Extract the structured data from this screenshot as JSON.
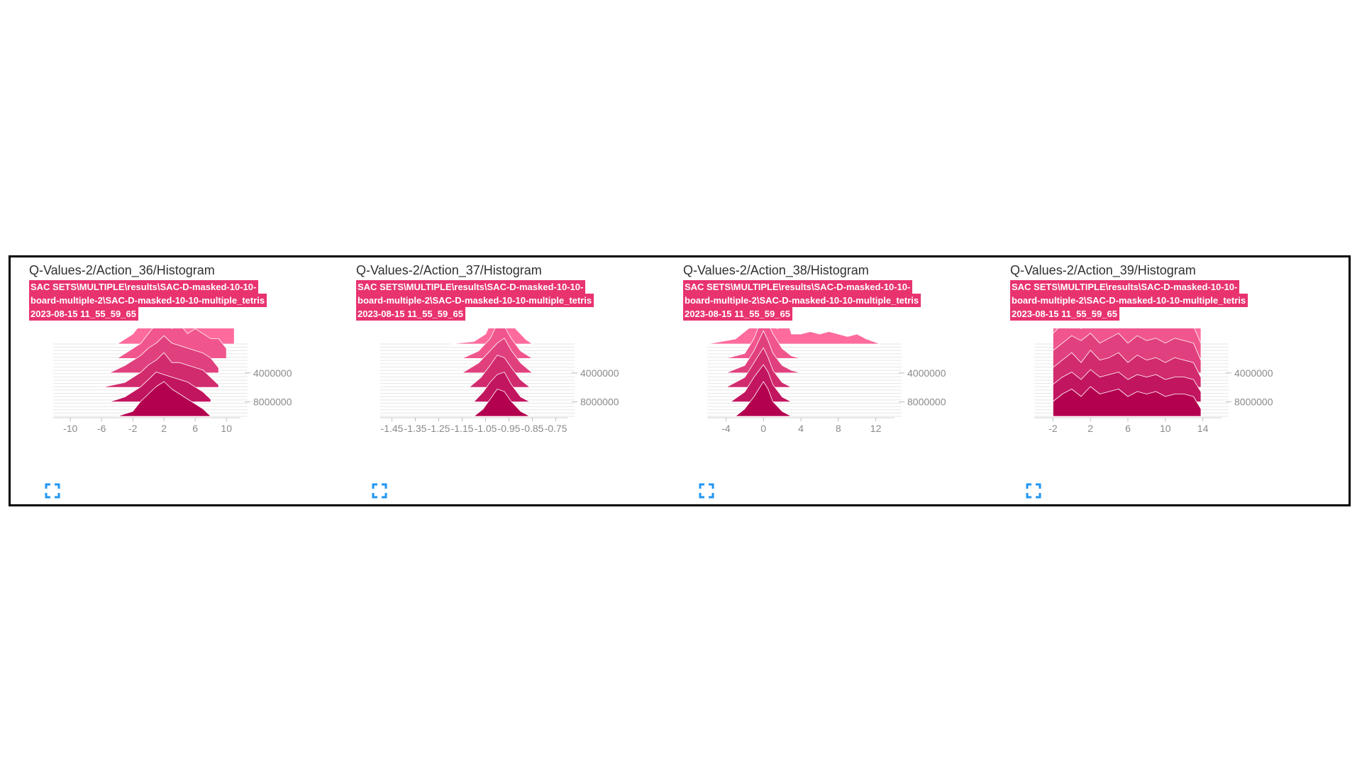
{
  "colors": {
    "accent": "#e8336f",
    "series": "#ff6b9d",
    "series_dark": "#b3004f",
    "icon": "#2196f3"
  },
  "cards": [
    {
      "title": "Q-Values-2/Action_36/Histogram",
      "run_lines": [
        "SAC SETS\\MULTIPLE\\results\\SAC-D-masked-10-10-",
        "board-multiple-2\\SAC-D-masked-10-10-multiple_tetris",
        "2023-08-15 11_55_59_65"
      ],
      "expand_icon": "fullscreen-icon"
    },
    {
      "title": "Q-Values-2/Action_37/Histogram",
      "run_lines": [
        "SAC SETS\\MULTIPLE\\results\\SAC-D-masked-10-10-",
        "board-multiple-2\\SAC-D-masked-10-10-multiple_tetris",
        "2023-08-15 11_55_59_65"
      ],
      "expand_icon": "fullscreen-icon"
    },
    {
      "title": "Q-Values-2/Action_38/Histogram",
      "run_lines": [
        "SAC SETS\\MULTIPLE\\results\\SAC-D-masked-10-10-",
        "board-multiple-2\\SAC-D-masked-10-10-multiple_tetris",
        "2023-08-15 11_55_59_65"
      ],
      "expand_icon": "fullscreen-icon"
    },
    {
      "title": "Q-Values-2/Action_39/Histogram",
      "run_lines": [
        "SAC SETS\\MULTIPLE\\results\\SAC-D-masked-10-10-",
        "board-multiple-2\\SAC-D-masked-10-10-multiple_tetris",
        "2023-08-15 11_55_59_65"
      ],
      "expand_icon": "fullscreen-icon"
    }
  ],
  "chart_data": [
    {
      "type": "area",
      "chart_kind": "ridgeline-histogram",
      "title": "Q-Values-2/Action_36/Histogram",
      "x_ticks": [
        -10,
        -6,
        -2,
        2,
        6,
        10
      ],
      "xlim": [
        -12.2,
        11.8
      ],
      "y_ticks": [
        4000000,
        8000000
      ],
      "steps": [
        0,
        2000000,
        4000000,
        6000000,
        8000000,
        10000000
      ],
      "series": [
        {
          "step": 0,
          "x": [
            -4,
            -2,
            -1,
            0,
            0.5,
            1,
            1.5,
            2,
            2.5,
            3,
            4,
            5,
            6,
            7,
            8,
            9,
            10,
            11
          ],
          "y": [
            0,
            0.2,
            0.4,
            0.5,
            0.9,
            0.6,
            1.0,
            0.7,
            0.8,
            0.6,
            0.7,
            0.6,
            0.65,
            0.55,
            0.6,
            0.5,
            0.45,
            0.6
          ]
        },
        {
          "step": 2000000,
          "x": [
            -4,
            -2,
            -1,
            0,
            1,
            2,
            3,
            4,
            5,
            6,
            7,
            8,
            9,
            10
          ],
          "y": [
            0,
            0.2,
            0.3,
            0.5,
            0.7,
            0.8,
            0.6,
            0.7,
            0.5,
            0.6,
            0.5,
            0.4,
            0.4,
            0.2
          ]
        },
        {
          "step": 4000000,
          "x": [
            -5,
            -3,
            -1,
            0,
            1,
            2,
            3,
            4,
            5,
            6,
            7,
            8,
            9
          ],
          "y": [
            0,
            0.15,
            0.35,
            0.5,
            0.6,
            0.75,
            0.6,
            0.55,
            0.5,
            0.45,
            0.4,
            0.3,
            0.1
          ]
        },
        {
          "step": 6000000,
          "x": [
            -6,
            -3,
            -1,
            0,
            1,
            2,
            3,
            4,
            5,
            6,
            7,
            8,
            9
          ],
          "y": [
            0,
            0.1,
            0.3,
            0.45,
            0.55,
            0.7,
            0.5,
            0.5,
            0.45,
            0.4,
            0.35,
            0.2,
            0.05
          ]
        },
        {
          "step": 8000000,
          "x": [
            -5,
            -3,
            -1,
            0,
            1,
            2,
            3,
            4,
            5,
            6,
            7,
            8
          ],
          "y": [
            0,
            0.1,
            0.3,
            0.45,
            0.6,
            0.55,
            0.5,
            0.45,
            0.4,
            0.3,
            0.2,
            0.05
          ]
        },
        {
          "step": 10000000,
          "x": [
            -4,
            -2,
            -1,
            0,
            1,
            2,
            3,
            4,
            5,
            6,
            7,
            8
          ],
          "y": [
            0,
            0.1,
            0.3,
            0.45,
            0.6,
            0.7,
            0.55,
            0.45,
            0.35,
            0.25,
            0.15,
            0
          ]
        }
      ]
    },
    {
      "type": "area",
      "chart_kind": "ridgeline-histogram",
      "title": "Q-Values-2/Action_37/Histogram",
      "x_ticks": [
        -1.45,
        -1.35,
        -1.25,
        -1.15,
        -1.05,
        -0.95,
        -0.85,
        -0.75
      ],
      "xlim": [
        -1.5,
        -0.7
      ],
      "y_ticks": [
        4000000,
        8000000
      ],
      "steps": [
        0,
        2000000,
        4000000,
        6000000,
        8000000,
        10000000
      ],
      "series": [
        {
          "step": 0,
          "x": [
            -1.2,
            -1.1,
            -1.05,
            -1.02,
            -0.99,
            -0.97,
            -0.95,
            -0.92,
            -0.88,
            -0.85
          ],
          "y": [
            0,
            0.05,
            0.2,
            0.5,
            0.6,
            1.0,
            0.5,
            0.3,
            0.1,
            0
          ]
        },
        {
          "step": 2000000,
          "x": [
            -1.15,
            -1.08,
            -1.03,
            -1.0,
            -0.97,
            -0.94,
            -0.9,
            -0.85
          ],
          "y": [
            0,
            0.15,
            0.4,
            0.7,
            0.65,
            0.4,
            0.15,
            0
          ]
        },
        {
          "step": 4000000,
          "x": [
            -1.15,
            -1.08,
            -1.03,
            -1.0,
            -0.97,
            -0.94,
            -0.9,
            -0.85
          ],
          "y": [
            0,
            0.2,
            0.45,
            0.6,
            0.7,
            0.45,
            0.2,
            0
          ]
        },
        {
          "step": 6000000,
          "x": [
            -1.12,
            -1.07,
            -1.03,
            -1.0,
            -0.97,
            -0.94,
            -0.9,
            -0.86
          ],
          "y": [
            0,
            0.2,
            0.45,
            0.65,
            0.6,
            0.4,
            0.15,
            0
          ]
        },
        {
          "step": 8000000,
          "x": [
            -1.1,
            -1.06,
            -1.03,
            -1.0,
            -0.97,
            -0.94,
            -0.9,
            -0.86
          ],
          "y": [
            0,
            0.2,
            0.4,
            0.55,
            0.6,
            0.35,
            0.1,
            0
          ]
        },
        {
          "step": 10000000,
          "x": [
            -1.1,
            -1.06,
            -1.03,
            -1.0,
            -0.97,
            -0.94,
            -0.9,
            -0.86
          ],
          "y": [
            0,
            0.15,
            0.35,
            0.55,
            0.5,
            0.3,
            0.1,
            0
          ]
        }
      ]
    },
    {
      "type": "area",
      "chart_kind": "ridgeline-histogram",
      "title": "Q-Values-2/Action_38/Histogram",
      "x_ticks": [
        -4,
        0,
        4,
        8,
        12
      ],
      "xlim": [
        -6,
        14
      ],
      "y_ticks": [
        4000000,
        8000000
      ],
      "steps": [
        0,
        2000000,
        4000000,
        6000000,
        8000000,
        10000000
      ],
      "series": [
        {
          "step": 0,
          "x": [
            -6,
            -3,
            -1,
            -0.5,
            0,
            0.5,
            1,
            1.5,
            2,
            2.5,
            3,
            4,
            5,
            6,
            7,
            8,
            9,
            10,
            11,
            12.5
          ],
          "y": [
            0,
            0.1,
            0.4,
            0.8,
            1.1,
            0.7,
            0.5,
            0.3,
            0.55,
            0.5,
            0.2,
            0.2,
            0.25,
            0.2,
            0.25,
            0.2,
            0.15,
            0.2,
            0.1,
            0
          ]
        },
        {
          "step": 2000000,
          "x": [
            -4,
            -2,
            -1,
            0,
            0.5,
            1,
            2,
            3,
            4
          ],
          "y": [
            0,
            0.1,
            0.4,
            0.9,
            0.7,
            0.5,
            0.2,
            0.05,
            0
          ]
        },
        {
          "step": 4000000,
          "x": [
            -4,
            -2,
            -1,
            0,
            0.5,
            1,
            2,
            3,
            4
          ],
          "y": [
            0,
            0.15,
            0.45,
            0.85,
            0.65,
            0.4,
            0.15,
            0.05,
            0
          ]
        },
        {
          "step": 6000000,
          "x": [
            -4,
            -2,
            -1,
            0,
            0.5,
            1,
            2,
            3
          ],
          "y": [
            0,
            0.2,
            0.5,
            0.8,
            0.6,
            0.35,
            0.1,
            0
          ]
        },
        {
          "step": 8000000,
          "x": [
            -3.5,
            -2,
            -1,
            0,
            0.5,
            1,
            2,
            3
          ],
          "y": [
            0,
            0.2,
            0.5,
            0.75,
            0.6,
            0.35,
            0.1,
            0
          ]
        },
        {
          "step": 10000000,
          "x": [
            -3,
            -2,
            -1,
            0,
            0.5,
            1,
            2,
            3
          ],
          "y": [
            0,
            0.15,
            0.4,
            0.7,
            0.55,
            0.3,
            0.1,
            0
          ]
        }
      ]
    },
    {
      "type": "area",
      "chart_kind": "ridgeline-histogram",
      "title": "Q-Values-2/Action_39/Histogram",
      "x_ticks": [
        -2,
        2,
        6,
        10,
        14
      ],
      "xlim": [
        -4,
        16
      ],
      "y_ticks": [
        4000000,
        8000000
      ],
      "steps": [
        0,
        2000000,
        4000000,
        6000000,
        8000000,
        10000000
      ],
      "series": [
        {
          "step": 0,
          "x": [
            -2,
            -1,
            0,
            0.5,
            1,
            2,
            3,
            4,
            5,
            6,
            7,
            8,
            9,
            10,
            11,
            12,
            13,
            13.8
          ],
          "y": [
            0.5,
            0.8,
            0.9,
            1.0,
            0.7,
            1.0,
            0.6,
            0.9,
            0.8,
            1.05,
            0.75,
            0.95,
            0.7,
            0.85,
            0.8,
            0.75,
            0.7,
            0.3
          ]
        },
        {
          "step": 2000000,
          "x": [
            -2,
            -1,
            0,
            1,
            2,
            3,
            4,
            5,
            6,
            7,
            8,
            9,
            10,
            11,
            12,
            13,
            13.8
          ],
          "y": [
            0.5,
            0.7,
            0.8,
            0.6,
            0.9,
            0.7,
            0.75,
            0.85,
            0.65,
            0.9,
            0.7,
            0.8,
            0.75,
            0.7,
            0.8,
            0.65,
            0.3
          ]
        },
        {
          "step": 4000000,
          "x": [
            -2,
            -1,
            0,
            1,
            2,
            3,
            4,
            5,
            6,
            7,
            8,
            9,
            10,
            11,
            12,
            13,
            13.8
          ],
          "y": [
            0.45,
            0.6,
            0.75,
            0.65,
            0.8,
            0.6,
            0.7,
            0.8,
            0.6,
            0.75,
            0.65,
            0.7,
            0.6,
            0.7,
            0.65,
            0.6,
            0.25
          ]
        },
        {
          "step": 6000000,
          "x": [
            -2,
            -1,
            0,
            1,
            2,
            3,
            4,
            5,
            6,
            7,
            8,
            9,
            10,
            11,
            12,
            13,
            13.8
          ],
          "y": [
            0.4,
            0.55,
            0.7,
            0.5,
            0.75,
            0.55,
            0.6,
            0.7,
            0.5,
            0.65,
            0.55,
            0.6,
            0.5,
            0.6,
            0.55,
            0.5,
            0.2
          ]
        },
        {
          "step": 8000000,
          "x": [
            -2,
            -1,
            0,
            1,
            2,
            3,
            4,
            5,
            6,
            7,
            8,
            9,
            10,
            11,
            12,
            13,
            13.8
          ],
          "y": [
            0.35,
            0.5,
            0.6,
            0.45,
            0.65,
            0.5,
            0.55,
            0.6,
            0.45,
            0.55,
            0.5,
            0.55,
            0.45,
            0.5,
            0.5,
            0.45,
            0.2
          ]
        },
        {
          "step": 10000000,
          "x": [
            -2,
            -1,
            0,
            1,
            2,
            3,
            4,
            5,
            6,
            7,
            8,
            9,
            10,
            11,
            12,
            13,
            13.8
          ],
          "y": [
            0.3,
            0.45,
            0.55,
            0.4,
            0.6,
            0.45,
            0.5,
            0.55,
            0.4,
            0.5,
            0.45,
            0.5,
            0.4,
            0.45,
            0.45,
            0.4,
            0.15
          ]
        }
      ]
    }
  ]
}
